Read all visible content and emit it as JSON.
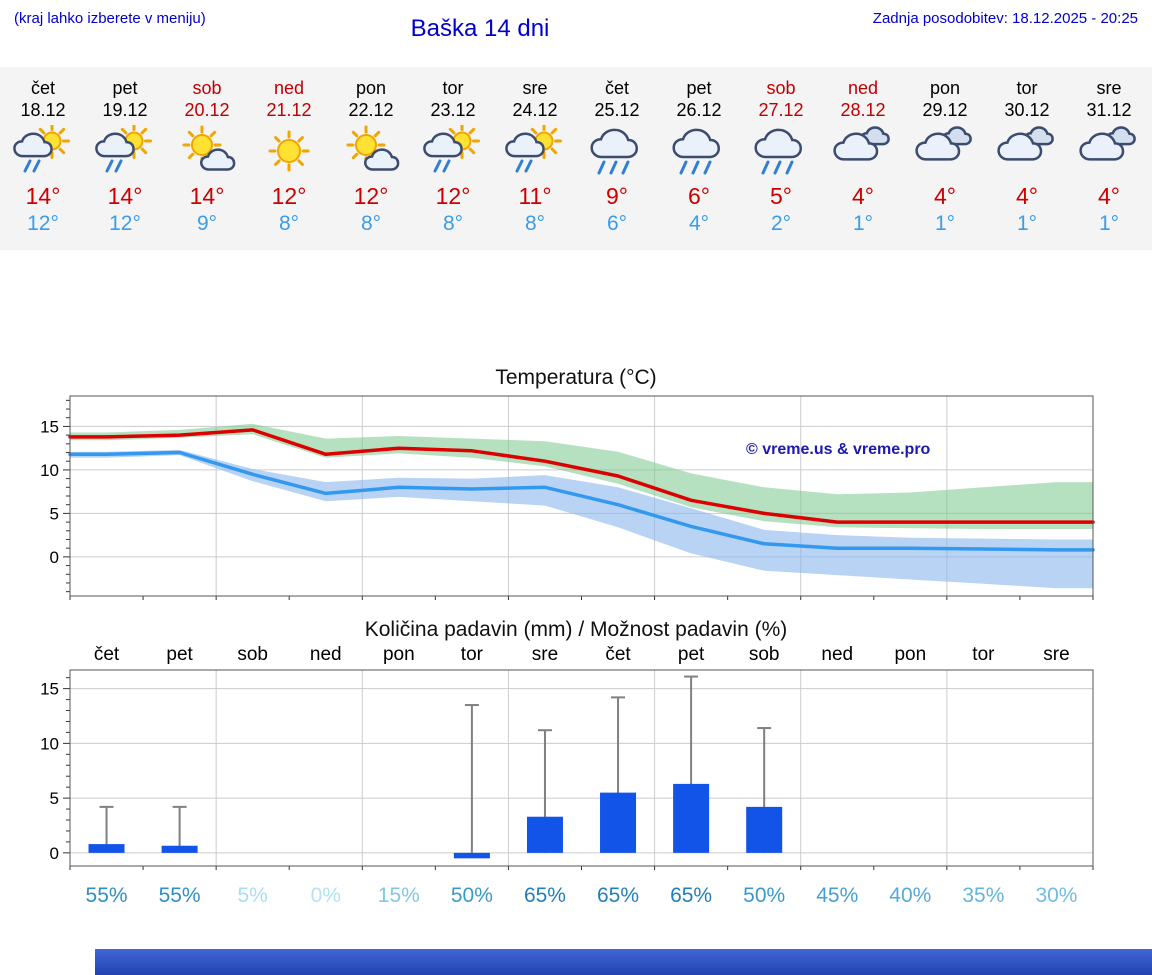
{
  "header": {
    "note": "(kraj lahko izberete v meniju)",
    "title": "Baška 14 dni",
    "updated": "Zadnja posodobitev: 18.12.2025 - 20:25"
  },
  "forecast": {
    "days": [
      {
        "name": "čet",
        "date": "18.12",
        "icon": "sun-cloud-rain",
        "high": "14°",
        "low": "12°",
        "weekend": false
      },
      {
        "name": "pet",
        "date": "19.12",
        "icon": "sun-cloud-rain",
        "high": "14°",
        "low": "12°",
        "weekend": false
      },
      {
        "name": "sob",
        "date": "20.12",
        "icon": "sun-cloud",
        "high": "14°",
        "low": "9°",
        "weekend": true
      },
      {
        "name": "ned",
        "date": "21.12",
        "icon": "sun",
        "high": "12°",
        "low": "8°",
        "weekend": true
      },
      {
        "name": "pon",
        "date": "22.12",
        "icon": "sun-cloud",
        "high": "12°",
        "low": "8°",
        "weekend": false
      },
      {
        "name": "tor",
        "date": "23.12",
        "icon": "sun-cloud-rain",
        "high": "12°",
        "low": "8°",
        "weekend": false
      },
      {
        "name": "sre",
        "date": "24.12",
        "icon": "sun-cloud-rain",
        "high": "11°",
        "low": "8°",
        "weekend": false
      },
      {
        "name": "čet",
        "date": "25.12",
        "icon": "cloud-rain",
        "high": "9°",
        "low": "6°",
        "weekend": false
      },
      {
        "name": "pet",
        "date": "26.12",
        "icon": "cloud-rain",
        "high": "6°",
        "low": "4°",
        "weekend": false
      },
      {
        "name": "sob",
        "date": "27.12",
        "icon": "cloud-rain",
        "high": "5°",
        "low": "2°",
        "weekend": true
      },
      {
        "name": "ned",
        "date": "28.12",
        "icon": "cloud",
        "high": "4°",
        "low": "1°",
        "weekend": true
      },
      {
        "name": "pon",
        "date": "29.12",
        "icon": "cloud",
        "high": "4°",
        "low": "1°",
        "weekend": false
      },
      {
        "name": "tor",
        "date": "30.12",
        "icon": "cloud",
        "high": "4°",
        "low": "1°",
        "weekend": false
      },
      {
        "name": "sre",
        "date": "31.12",
        "icon": "cloud",
        "high": "4°",
        "low": "1°",
        "weekend": false
      }
    ]
  },
  "chart_data": [
    {
      "type": "line",
      "title": "Temperatura (°C)",
      "watermark": "© vreme.us & vreme.pro",
      "categories": [
        "čet 18.12",
        "pet 19.12",
        "sob 20.12",
        "ned 21.12",
        "pon 22.12",
        "tor 23.12",
        "sre 24.12",
        "čet 25.12",
        "pet 26.12",
        "sob 27.12",
        "ned 28.12",
        "pon 29.12",
        "tor 30.12",
        "sre 31.12"
      ],
      "ylabel": "°C",
      "ylim": [
        -4.5,
        18.5
      ],
      "yticks": [
        0,
        5,
        10,
        15
      ],
      "grid": true,
      "series": [
        {
          "name": "max-temperature",
          "color": "#dd0000",
          "values": [
            13.8,
            14.0,
            14.6,
            11.8,
            12.5,
            12.2,
            11.0,
            9.3,
            6.5,
            5.0,
            4.0,
            4.0,
            4.0,
            4.0
          ]
        },
        {
          "name": "min-temperature",
          "color": "#3399ee",
          "values": [
            11.8,
            12.0,
            9.5,
            7.3,
            8.0,
            7.8,
            8.0,
            6.0,
            3.5,
            1.5,
            1.0,
            1.0,
            0.9,
            0.8
          ]
        }
      ],
      "bands": [
        {
          "name": "max-temperature-range",
          "color": "#7ac88e",
          "opacity": 0.55,
          "upper": [
            14.3,
            14.6,
            15.3,
            13.6,
            13.9,
            13.6,
            13.3,
            12.1,
            9.6,
            8.0,
            7.2,
            7.4,
            8.0,
            8.6
          ],
          "lower": [
            13.4,
            13.7,
            14.1,
            11.4,
            11.9,
            11.4,
            10.4,
            8.4,
            5.7,
            4.1,
            3.4,
            3.3,
            3.2,
            3.2
          ]
        },
        {
          "name": "min-temperature-range",
          "color": "#8ab6ee",
          "opacity": 0.6,
          "upper": [
            12.1,
            12.3,
            10.1,
            8.6,
            9.1,
            9.0,
            9.4,
            8.0,
            5.6,
            3.1,
            2.5,
            2.2,
            2.1,
            2.0
          ],
          "lower": [
            11.4,
            11.7,
            8.7,
            6.4,
            6.9,
            6.4,
            5.9,
            3.4,
            0.4,
            -1.6,
            -2.1,
            -2.6,
            -3.1,
            -3.6
          ]
        }
      ]
    },
    {
      "type": "bar",
      "title": "Količina padavin (mm) / Možnost padavin (%)",
      "categories": [
        "čet",
        "pet",
        "sob",
        "ned",
        "pon",
        "tor",
        "sre",
        "čet",
        "pet",
        "sob",
        "ned",
        "pon",
        "tor",
        "sre"
      ],
      "ylim": [
        -1.2,
        16.7
      ],
      "yticks": [
        0,
        5,
        10,
        15
      ],
      "grid": true,
      "bar_color": "#1253e8",
      "whisker_color": "#808080",
      "precip_mm": [
        0.8,
        0.65,
        0,
        0,
        0,
        -0.5,
        3.3,
        5.5,
        6.3,
        4.2,
        0,
        0,
        0,
        0
      ],
      "precip_max_mm": [
        4.2,
        4.2,
        0,
        0,
        0,
        13.5,
        11.2,
        14.2,
        16.1,
        11.4,
        0,
        0,
        0,
        0
      ],
      "probability": [
        {
          "label": "55%",
          "color": "#2e8ec6"
        },
        {
          "label": "55%",
          "color": "#2e8ec6"
        },
        {
          "label": "5%",
          "color": "#aadeee"
        },
        {
          "label": "0%",
          "color": "#b4e2f0"
        },
        {
          "label": "15%",
          "color": "#82c8e4"
        },
        {
          "label": "50%",
          "color": "#3a98cc"
        },
        {
          "label": "65%",
          "color": "#2080bc"
        },
        {
          "label": "65%",
          "color": "#2080bc"
        },
        {
          "label": "65%",
          "color": "#2080bc"
        },
        {
          "label": "50%",
          "color": "#3a98cc"
        },
        {
          "label": "45%",
          "color": "#46a0d0"
        },
        {
          "label": "40%",
          "color": "#54aad6"
        },
        {
          "label": "35%",
          "color": "#64b4dc"
        },
        {
          "label": "30%",
          "color": "#72bce0"
        }
      ]
    }
  ]
}
